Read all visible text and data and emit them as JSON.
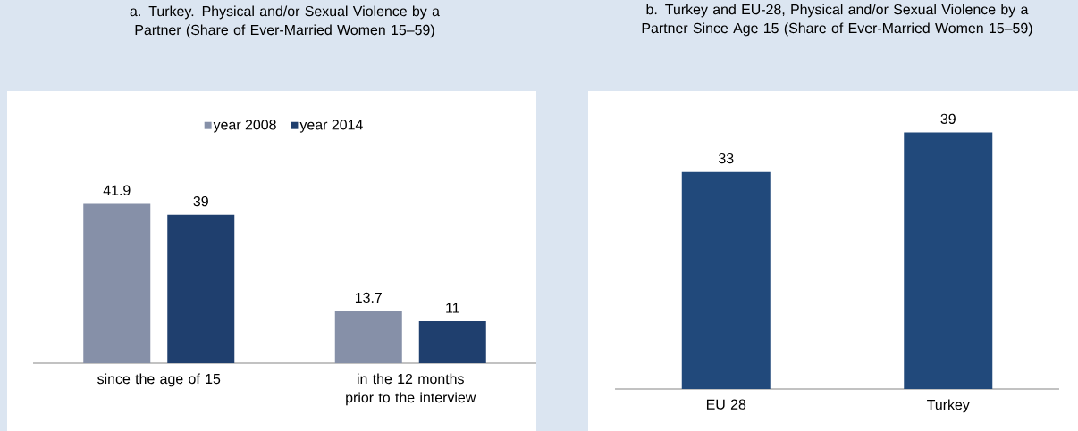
{
  "chart_data": [
    {
      "type": "bar",
      "title": "a.    Turkey. Physical and/or Sexual Violence by a Partner (Share of Ever-Married Women 15–59)",
      "categories": [
        "since the age of 15",
        "in the 12 months prior to the interview"
      ],
      "series": [
        {
          "name": "year 2008",
          "color": "#8690a8",
          "values": [
            41.9,
            13.7
          ]
        },
        {
          "name": "year 2014",
          "color": "#1f3f6e",
          "values": [
            39,
            11
          ]
        }
      ],
      "legend": "top",
      "data_labels": true
    },
    {
      "type": "bar",
      "title": "b.    Turkey and EU-28, Physical and/or Sexual Violence by a Partner Since Age 15 (Share of Ever-Married Women 15–59)",
      "categories": [
        "EU 28",
        "Turkey"
      ],
      "values": [
        33,
        39
      ],
      "color": "#21497b",
      "data_labels": true
    }
  ]
}
